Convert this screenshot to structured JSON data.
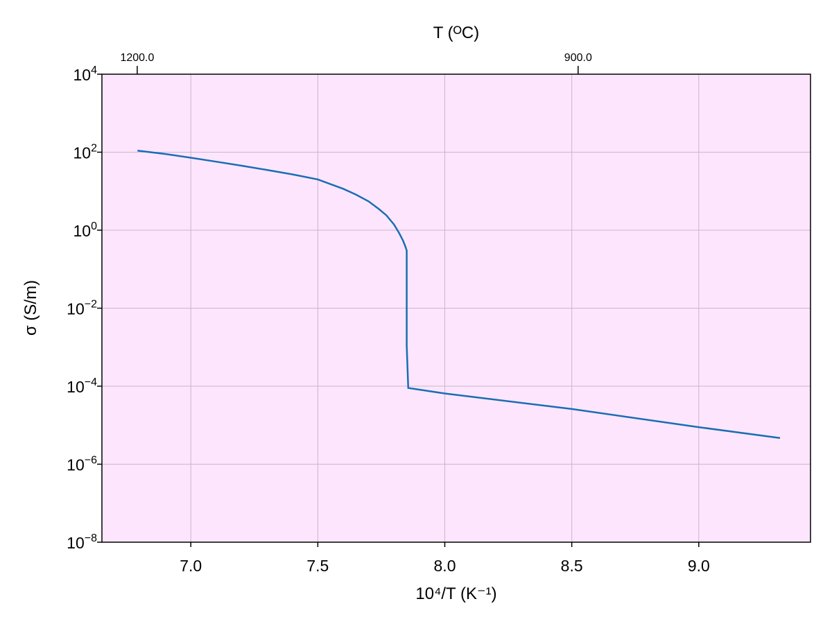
{
  "chart_data": {
    "type": "line",
    "title": "",
    "xlabel": "10⁴/T (K⁻¹)",
    "ylabel": "σ (S/m)",
    "top_xlabel": "T (ᴼC)",
    "xlim": [
      6.65,
      9.44
    ],
    "ylim": [
      1e-08,
      10000.0
    ],
    "yscale": "log",
    "grid": true,
    "legend": "none",
    "colors": {
      "background": "#fde6fd",
      "line": "#1a6db3",
      "grid": "#c9b5c9"
    },
    "x_ticks": [
      {
        "value": 7.0,
        "label": "7.0"
      },
      {
        "value": 7.5,
        "label": "7.5"
      },
      {
        "value": 8.0,
        "label": "8.0"
      },
      {
        "value": 8.5,
        "label": "8.5"
      },
      {
        "value": 9.0,
        "label": "9.0"
      }
    ],
    "y_ticks": [
      {
        "value": 10000.0,
        "base": "10",
        "exp": "4"
      },
      {
        "value": 100.0,
        "base": "10",
        "exp": "2"
      },
      {
        "value": 1.0,
        "base": "10",
        "exp": "0"
      },
      {
        "value": 0.01,
        "base": "10",
        "exp": "−2"
      },
      {
        "value": 0.0001,
        "base": "10",
        "exp": "−4"
      },
      {
        "value": 1e-06,
        "base": "10",
        "exp": "−6"
      },
      {
        "value": 1e-08,
        "base": "10",
        "exp": "−8"
      }
    ],
    "top_ticks": [
      {
        "value": 6.789,
        "label": "1200.0"
      },
      {
        "value": 8.525,
        "label": "900.0"
      }
    ],
    "series": [
      {
        "x": [
          6.79,
          6.9,
          7.0,
          7.1,
          7.2,
          7.3,
          7.4,
          7.5,
          7.6,
          7.65,
          7.7,
          7.74,
          7.77,
          7.8,
          7.82,
          7.835,
          7.845,
          7.85,
          7.85,
          7.856,
          8.0,
          8.5,
          9.0,
          9.32
        ],
        "y": [
          110,
          90,
          72,
          57,
          45,
          35,
          27,
          20,
          11.5,
          8.2,
          5.5,
          3.5,
          2.4,
          1.4,
          0.85,
          0.55,
          0.38,
          0.3,
          0.0011,
          9e-05,
          6.5e-05,
          2.6e-05,
          8.9e-06,
          4.7e-06
        ]
      }
    ]
  }
}
